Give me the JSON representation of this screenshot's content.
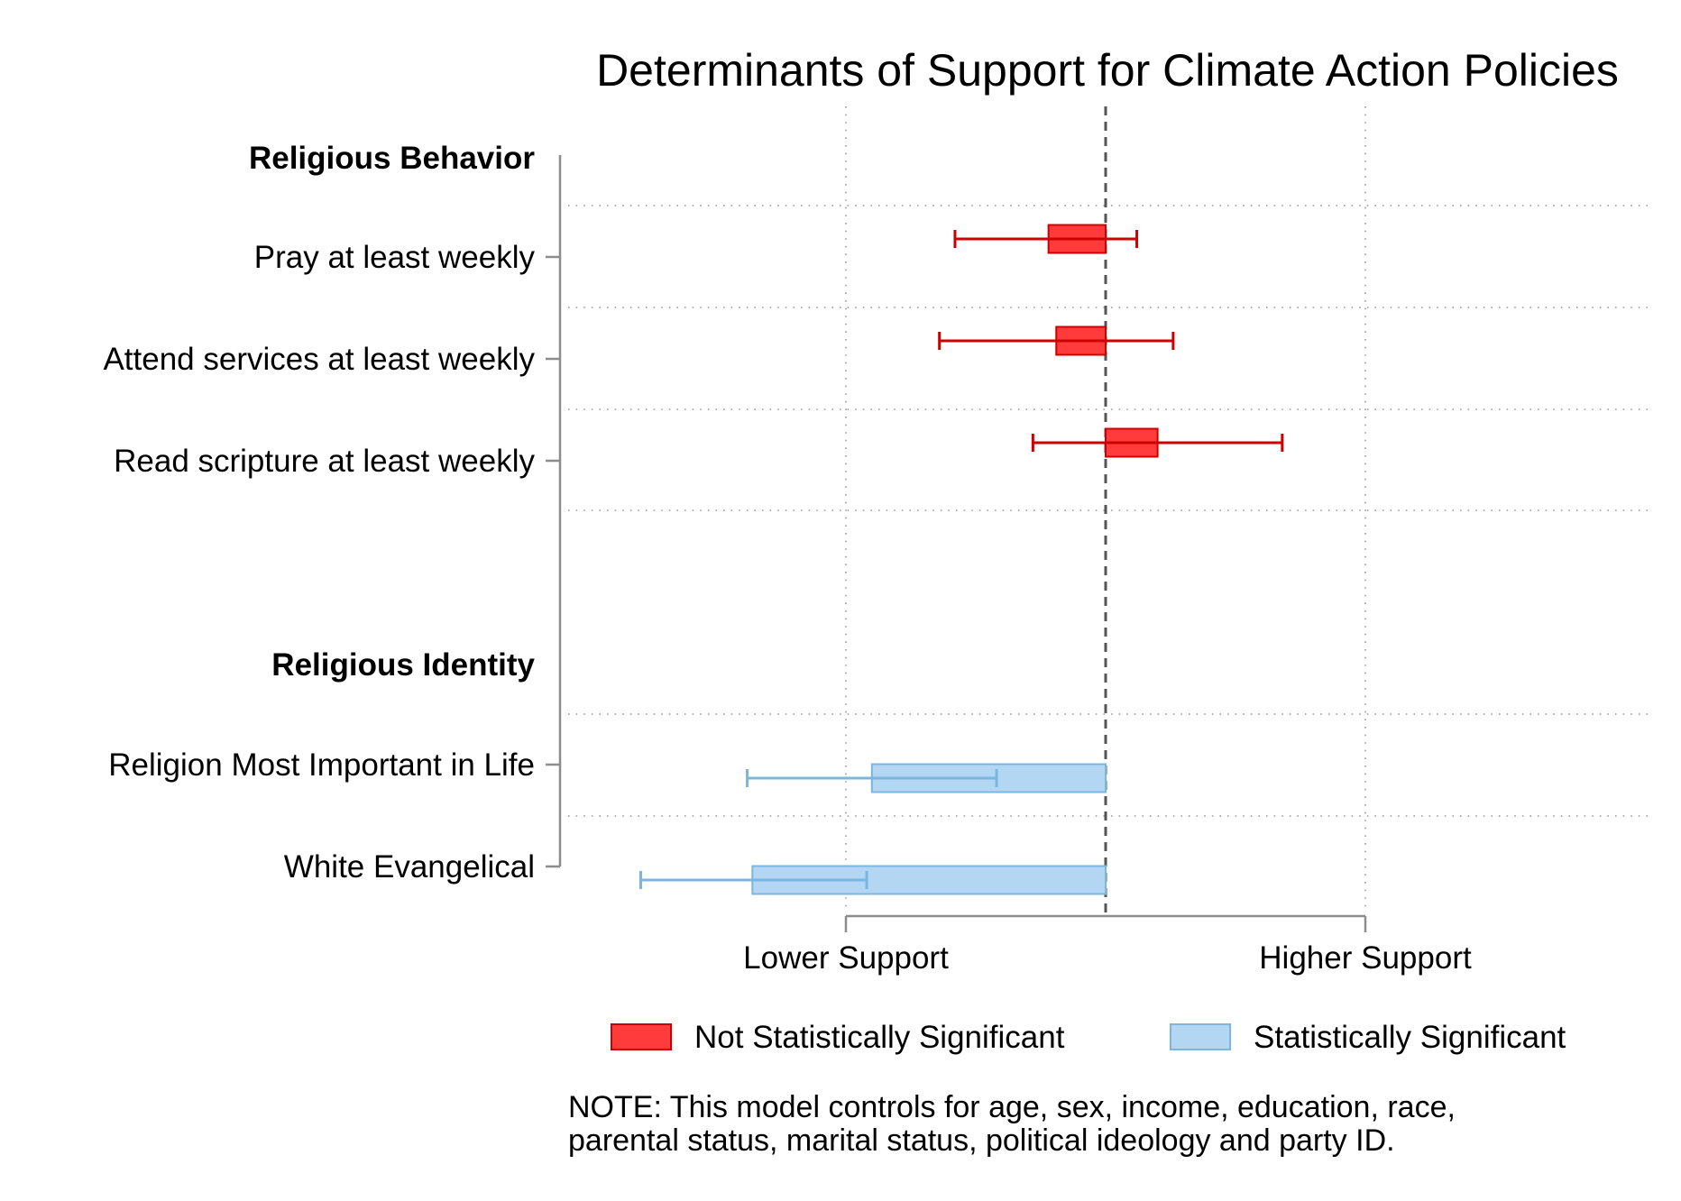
{
  "chart_data": {
    "type": "coefficient-plot",
    "title": "Determinants of Support for Climate Action Policies",
    "x_tick_labels": [
      "Lower Support",
      "Higher Support"
    ],
    "x_ticks": [
      -1,
      1
    ],
    "xlim": [
      -2.1,
      2.1
    ],
    "reference_line": 0,
    "groups": [
      {
        "label": "Religious Behavior"
      },
      {
        "label": "Religious Identity"
      }
    ],
    "rows": [
      {
        "label": "Pray at least weekly",
        "group": "Religious Behavior",
        "estimate": -0.22,
        "ci_low": -0.58,
        "ci_high": 0.12,
        "significant": false
      },
      {
        "label": "Attend services at least weekly",
        "group": "Religious Behavior",
        "estimate": -0.19,
        "ci_low": -0.64,
        "ci_high": 0.26,
        "significant": false
      },
      {
        "label": "Read scripture at least weekly",
        "group": "Religious Behavior",
        "estimate": 0.2,
        "ci_low": -0.28,
        "ci_high": 0.68,
        "significant": false
      },
      {
        "label": "Religion Most Important in Life",
        "group": "Religious Identity",
        "estimate": -0.9,
        "ci_low": -1.38,
        "ci_high": -0.42,
        "significant": true
      },
      {
        "label": "White Evangelical",
        "group": "Religious Identity",
        "estimate": -1.36,
        "ci_low": -1.79,
        "ci_high": -0.92,
        "significant": true
      }
    ],
    "legend": [
      {
        "label": "Not Statistically Significant",
        "fill": "#ff3b3b",
        "stroke": "#cc0000"
      },
      {
        "label": "Statistically Significant",
        "fill": "#b3d7f3",
        "stroke": "#7bb6e0"
      }
    ],
    "legend_position": "bottom",
    "grid": "dotted"
  },
  "note": {
    "line1": "NOTE: This model controls for age, sex, income, education, race,",
    "line2": "parental status, marital status, political ideology and party ID."
  }
}
